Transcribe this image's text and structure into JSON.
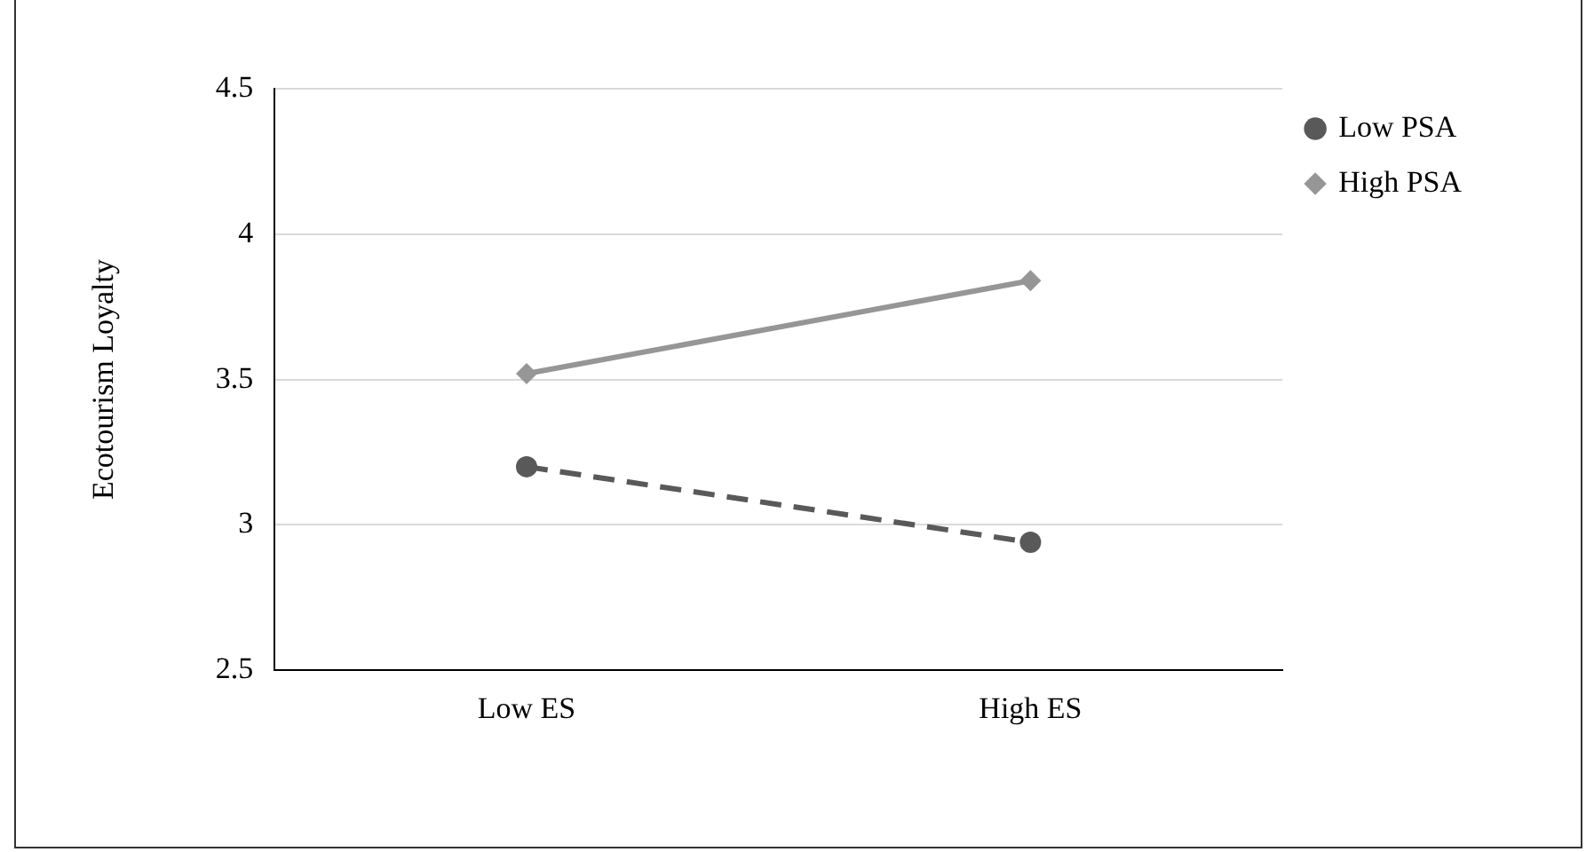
{
  "chart_data": {
    "type": "line",
    "ylabel": "Ecotourism Loyalty",
    "categories": [
      "Low ES",
      "High ES"
    ],
    "series": [
      {
        "name": "Low PSA",
        "color": "#595959",
        "values": [
          3.2,
          2.94
        ],
        "marker": "circle",
        "line_style": "dashed"
      },
      {
        "name": "High PSA",
        "color": "#969696",
        "values": [
          3.52,
          3.84
        ],
        "marker": "diamond",
        "line_style": "solid"
      }
    ],
    "ylim": [
      2.5,
      4.5
    ],
    "yticks": [
      2.5,
      3,
      3.5,
      4,
      4.5
    ],
    "grid": "y",
    "legend": "top right"
  }
}
